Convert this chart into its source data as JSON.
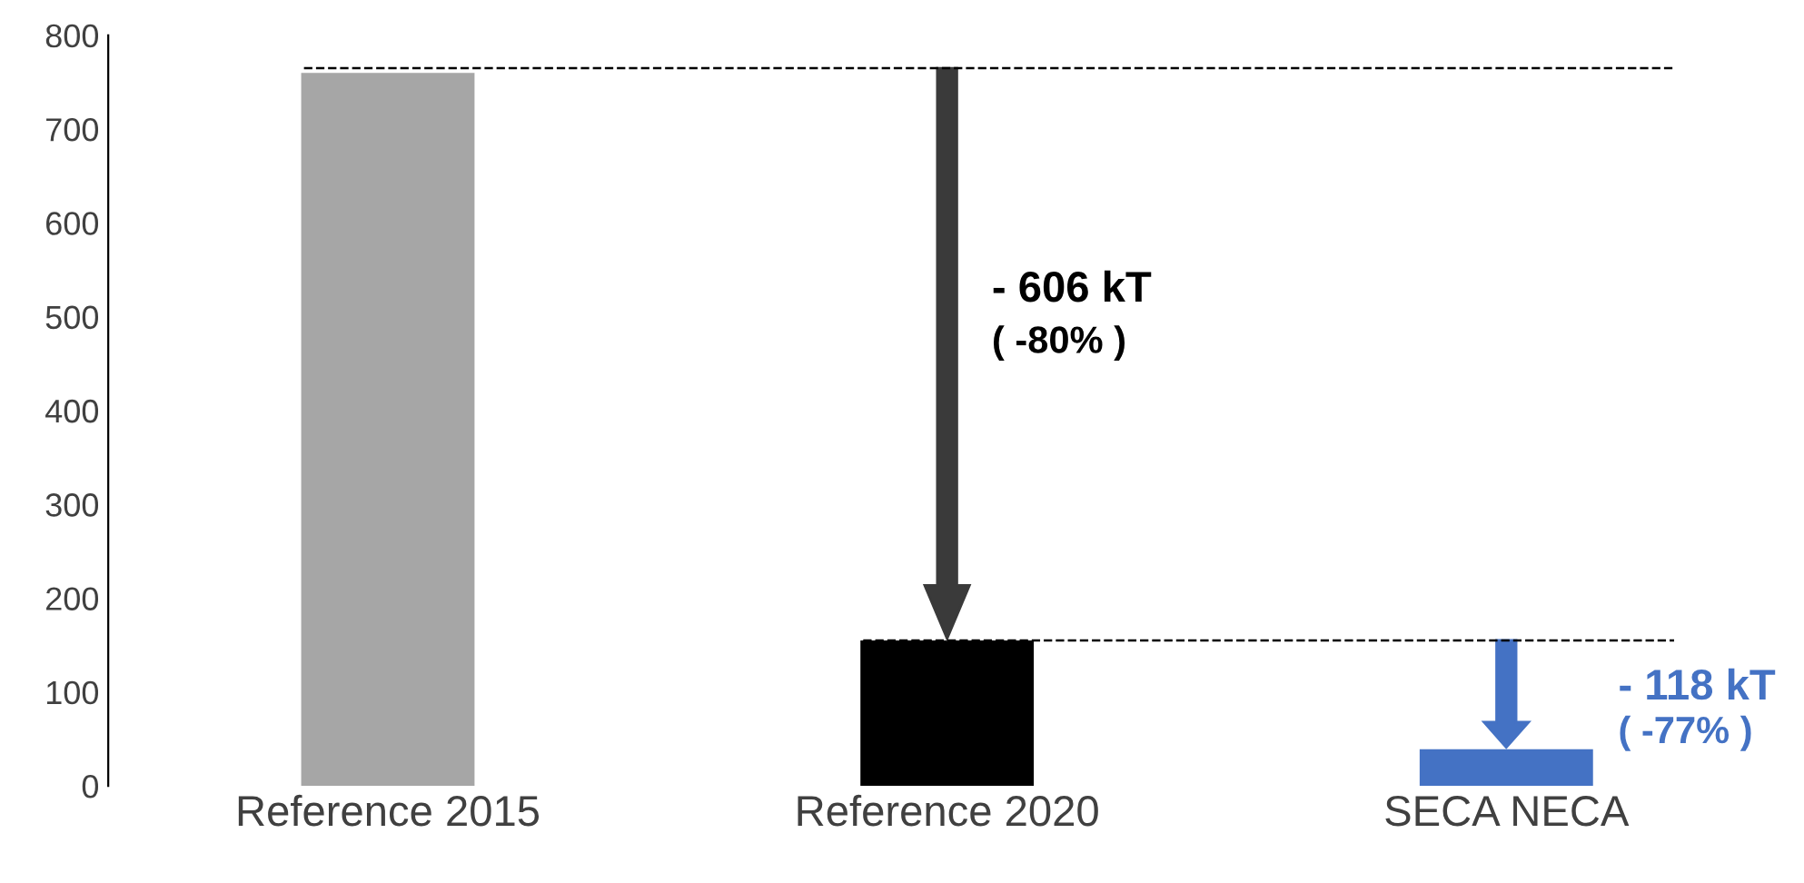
{
  "chart_data": {
    "type": "bar",
    "categories": [
      "Reference 2015",
      "Reference 2020",
      "SECA NECA"
    ],
    "values": [
      760,
      155,
      39
    ],
    "colors": [
      "#a6a6a6",
      "#000000",
      "#4472c4"
    ],
    "ylim": [
      0,
      800
    ],
    "yticks": [
      0,
      100,
      200,
      300,
      400,
      500,
      600,
      700,
      800
    ],
    "grid": false,
    "ref_lines": [
      {
        "axis": "y",
        "value": 765,
        "line_style": "dashed",
        "color": "#000000"
      },
      {
        "axis": "y",
        "value": 155,
        "line_style": "dashed",
        "color": "#000000"
      }
    ],
    "annotations": [
      "- 606 kT",
      "( -80% )",
      "- 118 kT",
      "( -77% )"
    ]
  }
}
